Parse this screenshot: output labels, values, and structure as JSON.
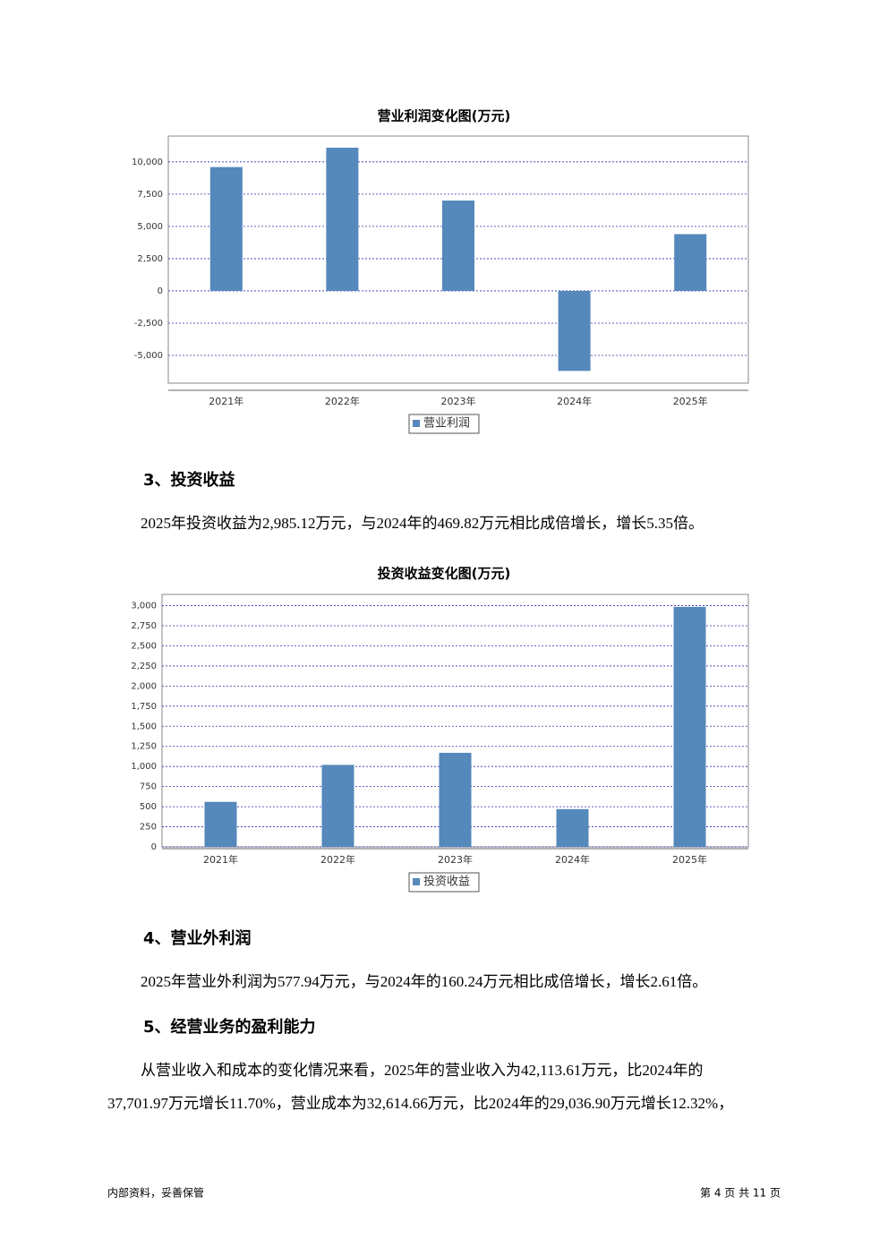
{
  "chart_data": [
    {
      "type": "bar",
      "title": "营业利润变化图(万元)",
      "categories": [
        "2021年",
        "2022年",
        "2023年",
        "2024年",
        "2025年"
      ],
      "series": [
        {
          "name": "营业利润",
          "color": "#5588bb",
          "values": [
            9600,
            11100,
            7000,
            -6200,
            4400
          ]
        }
      ],
      "ylim": [
        -7150,
        12000
      ],
      "yticks": [
        {
          "value": -5000,
          "label": "-5,000"
        },
        {
          "value": -2500,
          "label": "-2,500"
        },
        0,
        {
          "value": 2500,
          "label": "2,500"
        },
        {
          "value": 5000,
          "label": "5,000"
        },
        {
          "value": 7500,
          "label": "7,500"
        },
        {
          "value": 10000,
          "label": "10,000"
        }
      ],
      "grid": true
    },
    {
      "type": "bar",
      "title": "投资收益变化图(万元)",
      "categories": [
        "2021年",
        "2022年",
        "2023年",
        "2024年",
        "2025年"
      ],
      "series": [
        {
          "name": "投资收益",
          "color": "#5588bb",
          "values": [
            560,
            1020,
            1170,
            469.82,
            2985.12
          ]
        }
      ],
      "ylim": [
        0,
        3140
      ],
      "yticks": [
        0,
        250,
        500,
        750,
        {
          "value": 1000,
          "label": "1,000"
        },
        {
          "value": 1250,
          "label": "1,250"
        },
        {
          "value": 1500,
          "label": "1,500"
        },
        {
          "value": 1750,
          "label": "1,750"
        },
        {
          "value": 2000,
          "label": "2,000"
        },
        {
          "value": 2250,
          "label": "2,250"
        },
        {
          "value": 2500,
          "label": "2,500"
        },
        {
          "value": 2750,
          "label": "2,750"
        },
        {
          "value": 3000,
          "label": "3,000"
        }
      ],
      "grid": true
    }
  ],
  "sections": [
    {
      "heading": "3、投资收益",
      "lines": [
        "2025年投资收益为2,985.12万元，与2024年的469.82万元相比成倍增长，增长5.35倍。"
      ]
    },
    {
      "heading": "4、营业外利润",
      "lines": [
        "2025年营业外利润为577.94万元，与2024年的160.24万元相比成倍增长，增长2.61倍。"
      ]
    },
    {
      "heading": "5、经营业务的盈利能力",
      "lines": [
        "从营业收入和成本的变化情况来看，2025年的营业收入为42,113.61万元，比2024年的",
        "37,701.97万元增长11.70%，营业成本为32,614.66万元，比2024年的29,036.90万元增长12.32%，"
      ]
    }
  ],
  "footer": {
    "left": "内部资料，妥善保管",
    "right": "第 4 页  共 11 页"
  }
}
